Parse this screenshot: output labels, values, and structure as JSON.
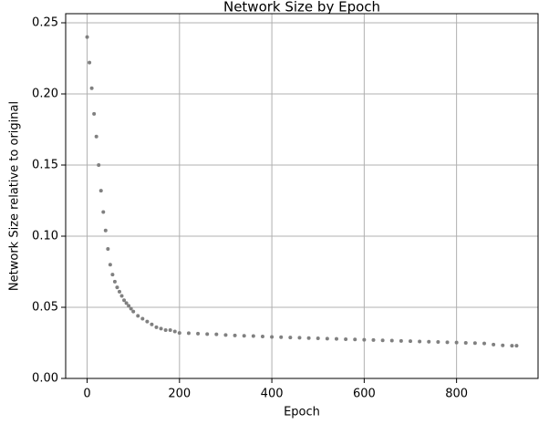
{
  "chart_data": {
    "type": "scatter",
    "title": "Network Size by Epoch",
    "x_label": "Epoch",
    "y_label": "Network Size relative to original",
    "color": "#808080",
    "grid": true,
    "x": [
      0,
      5,
      10,
      15,
      20,
      25,
      30,
      35,
      40,
      45,
      50,
      55,
      60,
      65,
      70,
      75,
      80,
      85,
      90,
      95,
      100,
      110,
      120,
      130,
      140,
      150,
      160,
      170,
      180,
      190,
      200,
      220,
      240,
      260,
      280,
      300,
      320,
      340,
      360,
      380,
      400,
      420,
      440,
      460,
      480,
      500,
      520,
      540,
      560,
      580,
      600,
      620,
      640,
      660,
      680,
      700,
      720,
      740,
      760,
      780,
      800,
      820,
      840,
      860,
      880,
      900,
      920,
      930
    ],
    "values": [
      0.24,
      0.222,
      0.204,
      0.186,
      0.17,
      0.15,
      0.132,
      0.117,
      0.104,
      0.091,
      0.08,
      0.073,
      0.068,
      0.064,
      0.061,
      0.058,
      0.055,
      0.053,
      0.051,
      0.049,
      0.047,
      0.044,
      0.042,
      0.04,
      0.038,
      0.036,
      0.035,
      0.034,
      0.034,
      0.033,
      0.032,
      0.0318,
      0.0315,
      0.0312,
      0.031,
      0.0305,
      0.0302,
      0.03,
      0.0298,
      0.0295,
      0.0292,
      0.029,
      0.0288,
      0.0286,
      0.0284,
      0.0282,
      0.028,
      0.0278,
      0.0276,
      0.0274,
      0.0272,
      0.027,
      0.0268,
      0.0266,
      0.0264,
      0.0262,
      0.026,
      0.0258,
      0.0256,
      0.0254,
      0.0252,
      0.025,
      0.0248,
      0.0246,
      0.0238,
      0.0232,
      0.023,
      0.023
    ],
    "xlim": [
      -46.5,
      976.5
    ],
    "ylim": [
      0,
      0.2564
    ],
    "xticks": [
      0,
      200,
      400,
      600,
      800
    ],
    "yticks": [
      {
        "value": 0,
        "label": "0.00"
      },
      {
        "value": 0.05,
        "label": "0.05"
      },
      {
        "value": 0.1,
        "label": "0.10"
      },
      {
        "value": 0.15,
        "label": "0.15"
      },
      {
        "value": 0.2,
        "label": "0.20"
      },
      {
        "value": 0.25,
        "label": "0.25"
      }
    ]
  }
}
